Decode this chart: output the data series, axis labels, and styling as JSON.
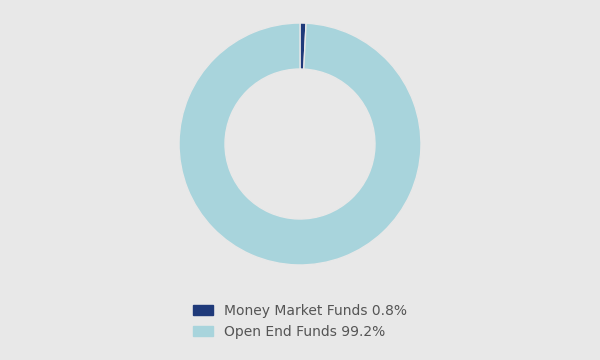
{
  "labels": [
    "Money Market Funds 0.8%",
    "Open End Funds 99.2%"
  ],
  "values": [
    0.8,
    99.2
  ],
  "colors": [
    "#1f3a7a",
    "#a8d4dc"
  ],
  "background_color": "#e8e8e8",
  "donut_width": 0.38,
  "legend_fontsize": 10,
  "figsize": [
    6.0,
    3.6
  ],
  "dpi": 100,
  "legend_text_color": "#555555"
}
